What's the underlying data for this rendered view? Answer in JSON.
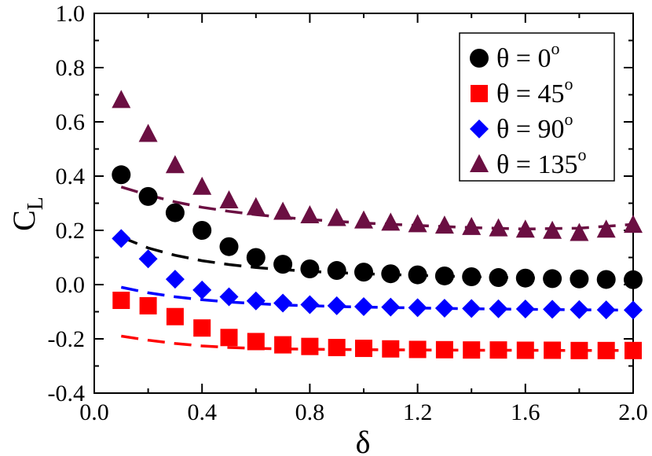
{
  "chart_data": {
    "type": "scatter",
    "title": "",
    "xlabel": "δ",
    "ylabel": {
      "main": "C",
      "sub": "L"
    },
    "xlim": [
      0.0,
      2.0
    ],
    "ylim": [
      -0.4,
      1.0
    ],
    "x_ticks": [
      0.0,
      0.4,
      0.8,
      1.2,
      1.6,
      2.0
    ],
    "x_tick_labels": [
      "0.0",
      "0.4",
      "0.8",
      "1.2",
      "1.6",
      "2.0"
    ],
    "y_ticks": [
      -0.4,
      -0.2,
      0.0,
      0.2,
      0.4,
      0.6,
      0.8,
      1.0
    ],
    "y_tick_labels": [
      "-0.4",
      "-0.2",
      "0.0",
      "0.2",
      "0.4",
      "0.6",
      "0.8",
      "1.0"
    ],
    "legend_position": "top-right",
    "x": [
      0.1,
      0.2,
      0.3,
      0.4,
      0.5,
      0.6,
      0.7,
      0.8,
      0.9,
      1.0,
      1.1,
      1.2,
      1.3,
      1.4,
      1.5,
      1.6,
      1.7,
      1.8,
      1.9,
      2.0
    ],
    "series": [
      {
        "name": "θ = 0°",
        "label_prefix": "θ = 0",
        "label_sup": "o",
        "marker": "circle",
        "color": "#000000",
        "values": [
          0.405,
          0.325,
          0.265,
          0.2,
          0.14,
          0.1,
          0.075,
          0.058,
          0.052,
          0.046,
          0.04,
          0.036,
          0.032,
          0.029,
          0.026,
          0.024,
          0.022,
          0.021,
          0.019,
          0.018
        ],
        "fit_x": [
          0.1,
          0.2,
          0.3,
          0.4,
          0.5,
          0.6,
          0.7,
          0.8,
          0.9,
          1.0,
          1.2,
          1.4,
          1.6,
          1.8,
          2.0
        ],
        "fit_values": [
          0.175,
          0.135,
          0.108,
          0.088,
          0.074,
          0.063,
          0.055,
          0.049,
          0.044,
          0.04,
          0.034,
          0.029,
          0.025,
          0.022,
          0.02
        ]
      },
      {
        "name": "θ = 45°",
        "label_prefix": "θ = 45",
        "label_sup": "o",
        "marker": "square",
        "color": "#ff0000",
        "values": [
          -0.058,
          -0.078,
          -0.118,
          -0.16,
          -0.195,
          -0.21,
          -0.222,
          -0.228,
          -0.232,
          -0.235,
          -0.237,
          -0.239,
          -0.24,
          -0.241,
          -0.241,
          -0.242,
          -0.242,
          -0.243,
          -0.243,
          -0.243
        ],
        "fit_x": [
          0.1,
          0.2,
          0.3,
          0.4,
          0.5,
          0.6,
          0.7,
          0.8,
          0.9,
          1.0,
          1.2,
          1.4,
          1.6,
          1.8,
          2.0
        ],
        "fit_values": [
          -0.19,
          -0.205,
          -0.217,
          -0.226,
          -0.232,
          -0.235,
          -0.237,
          -0.238,
          -0.239,
          -0.24,
          -0.241,
          -0.242,
          -0.242,
          -0.243,
          -0.243
        ]
      },
      {
        "name": "θ = 90°",
        "label_prefix": "θ = 90",
        "label_sup": "o",
        "marker": "diamond",
        "color": "#0000ff",
        "values": [
          0.17,
          0.095,
          0.02,
          -0.02,
          -0.045,
          -0.06,
          -0.068,
          -0.074,
          -0.078,
          -0.081,
          -0.083,
          -0.085,
          -0.087,
          -0.088,
          -0.089,
          -0.09,
          -0.091,
          -0.092,
          -0.093,
          -0.094
        ],
        "fit_x": [
          0.1,
          0.2,
          0.3,
          0.4,
          0.5,
          0.6,
          0.7,
          0.8,
          0.9,
          1.0,
          1.2,
          1.4,
          1.6,
          1.8,
          2.0
        ],
        "fit_values": [
          -0.01,
          -0.03,
          -0.045,
          -0.056,
          -0.064,
          -0.07,
          -0.075,
          -0.078,
          -0.081,
          -0.083,
          -0.086,
          -0.089,
          -0.091,
          -0.093,
          -0.094
        ]
      },
      {
        "name": "θ = 135°",
        "label_prefix": "θ = 135",
        "label_sup": "o",
        "marker": "triangle",
        "color": "#6b0f42",
        "values": [
          0.68,
          0.555,
          0.44,
          0.36,
          0.31,
          0.285,
          0.268,
          0.255,
          0.245,
          0.236,
          0.228,
          0.222,
          0.217,
          0.212,
          0.207,
          0.202,
          0.198,
          0.19,
          0.202,
          0.22
        ],
        "fit_x": [
          0.1,
          0.2,
          0.3,
          0.4,
          0.5,
          0.6,
          0.7,
          0.8,
          0.9,
          1.0,
          1.2,
          1.4,
          1.6,
          1.8,
          2.0
        ],
        "fit_values": [
          0.36,
          0.33,
          0.305,
          0.285,
          0.27,
          0.258,
          0.248,
          0.24,
          0.233,
          0.227,
          0.218,
          0.21,
          0.205,
          0.208,
          0.222
        ]
      }
    ]
  }
}
